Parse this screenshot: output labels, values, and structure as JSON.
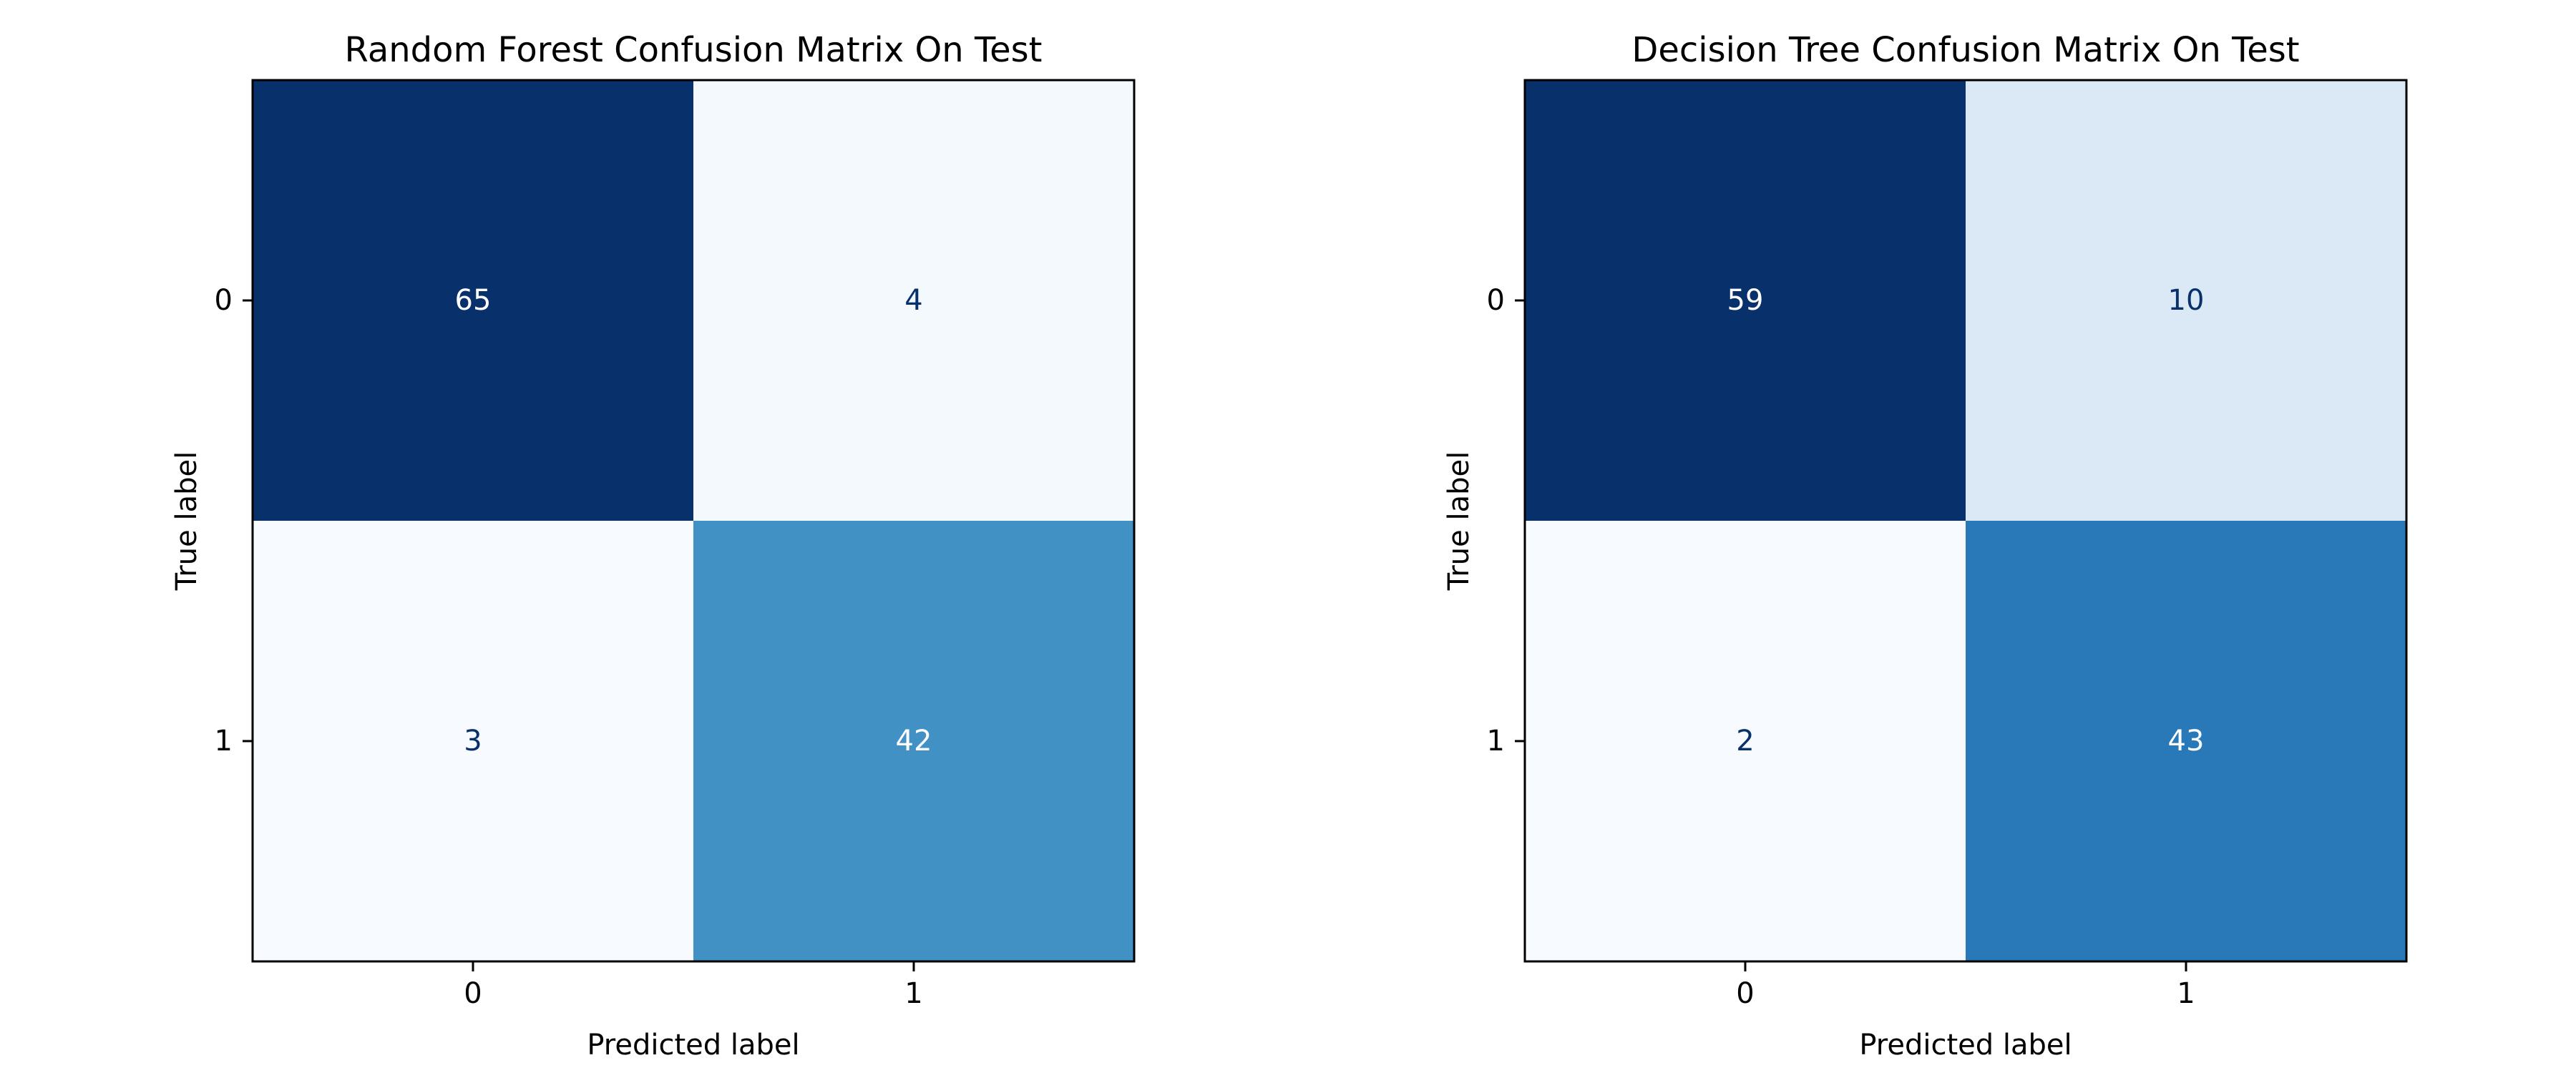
{
  "chart_data": [
    {
      "type": "heatmap",
      "title": "Random Forest Confusion Matrix On Test",
      "xlabel": "Predicted label",
      "ylabel": "True label",
      "x_tick_labels": [
        "0",
        "1"
      ],
      "y_tick_labels": [
        "0",
        "1"
      ],
      "matrix": [
        [
          65,
          4
        ],
        [
          3,
          42
        ]
      ],
      "colormap": "Blues",
      "colorbar": false,
      "grid": false
    },
    {
      "type": "heatmap",
      "title": "Decision Tree Confusion Matrix On Test",
      "xlabel": "Predicted label",
      "ylabel": "True label",
      "x_tick_labels": [
        "0",
        "1"
      ],
      "y_tick_labels": [
        "0",
        "1"
      ],
      "matrix": [
        [
          59,
          10
        ],
        [
          2,
          43
        ]
      ],
      "colormap": "Blues",
      "colorbar": false,
      "grid": false
    }
  ]
}
